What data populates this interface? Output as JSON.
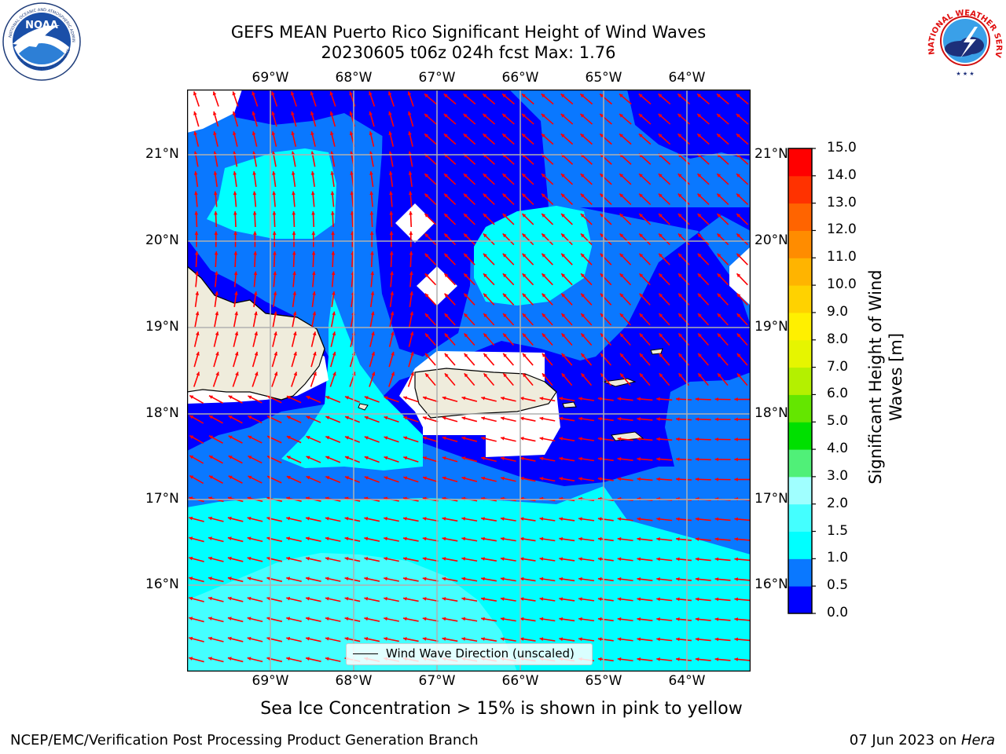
{
  "header": {
    "title_line1": "GEFS MEAN Puerto Rico Significant Height of Wind Waves",
    "title_line2": "20230605 t06z 024h fcst   Max: 1.76"
  },
  "logos": {
    "left": "NOAA",
    "left_ring_top": "NATIONAL OCEANIC AND ATMOSPHERIC ADMINISTRATION",
    "left_ring_bottom": "U.S. DEPARTMENT OF COMMERCE",
    "right_ring": "NATIONAL WEATHER SERVICE"
  },
  "map": {
    "lon_labels": [
      "69°W",
      "68°W",
      "67°W",
      "66°W",
      "65°W",
      "64°W"
    ],
    "lat_labels": [
      "21°N",
      "20°N",
      "19°N",
      "18°N",
      "17°N",
      "16°N"
    ],
    "legend_label": "Wind Wave Direction (unscaled)",
    "arrow_color": "#ff0000",
    "land_color": "#efecdc"
  },
  "colorbar": {
    "label": "Significant Height of Wind Waves [m]",
    "ticks": [
      "0.0",
      "0.5",
      "1.0",
      "1.5",
      "2.0",
      "3.0",
      "4.0",
      "5.0",
      "6.0",
      "7.0",
      "8.0",
      "9.0",
      "10.0",
      "11.0",
      "12.0",
      "13.0",
      "14.0",
      "15.0"
    ],
    "colors": [
      "#0000ff",
      "#0a78ff",
      "#00ffff",
      "#44ffff",
      "#a0ffff",
      "#50f078",
      "#00e000",
      "#64e600",
      "#b4f000",
      "#e6f500",
      "#fff000",
      "#ffd200",
      "#ffb400",
      "#ff8c00",
      "#ff6400",
      "#ff3200",
      "#ff0000"
    ]
  },
  "notes": {
    "sea_ice": "Sea Ice Concentration > 15% is shown in pink to yellow"
  },
  "footer": {
    "left": "NCEP/EMC/Verification Post Processing Product Generation Branch",
    "right_prefix": "07 Jun 2023 on ",
    "right_machine": "Hera"
  }
}
